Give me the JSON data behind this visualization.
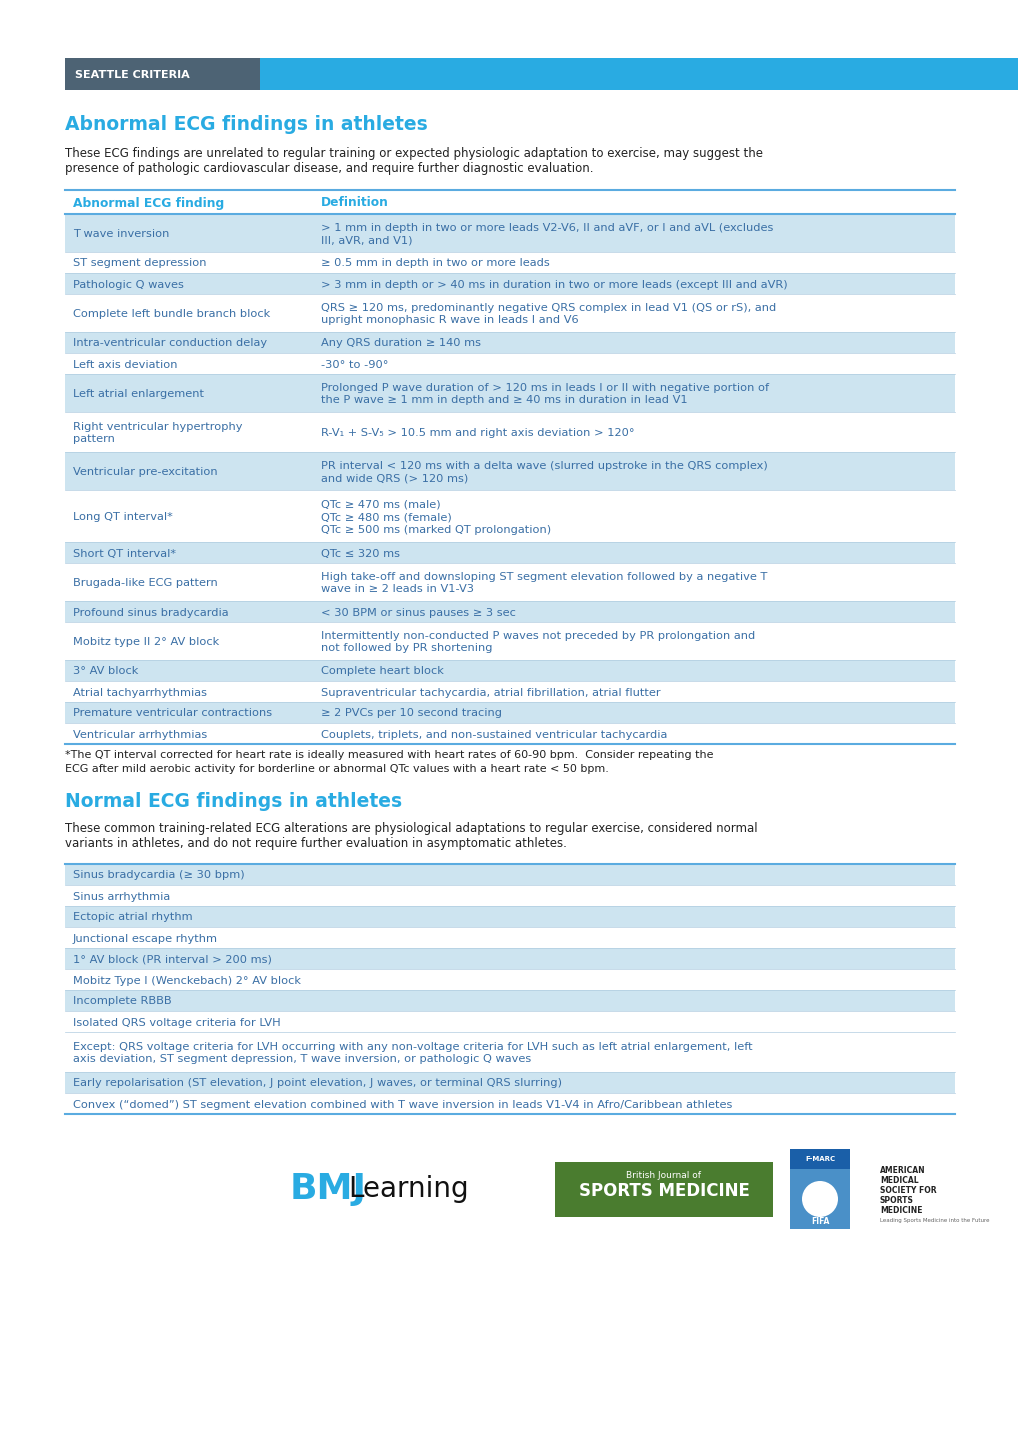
{
  "header_bg": "#4d6374",
  "header_light_bg": "#29abe2",
  "header_text": "SEATTLE CRITERIA",
  "title_abnormal": "Abnormal ECG findings in athletes",
  "title_normal": "Normal ECG findings in athletes",
  "title_color": "#29abe2",
  "body_bg": "#ffffff",
  "table_header_color": "#29abe2",
  "table_row_alt_color": "#cde4f0",
  "table_row_white": "#ffffff",
  "table_text_color": "#3a6fa5",
  "border_color": "#5aabe0",
  "abnormal_desc1": "These ECG findings are unrelated to regular training or expected physiologic adaptation to exercise, may suggest the",
  "abnormal_desc2": "presence of pathologic cardiovascular disease, and require further diagnostic evaluation.",
  "normal_desc1": "These common training-related ECG alterations are physiological adaptations to regular exercise, considered normal",
  "normal_desc2": "variants in athletes, and do not require further evaluation in asymptomatic athletes.",
  "footnote1": "*The QT interval corrected for heart rate is ideally measured with heart rates of 60-90 bpm.  Consider repeating the",
  "footnote2": "ECG after mild aerobic activity for borderline or abnormal QTc values with a heart rate < 50 bpm.",
  "col1_header": "Abnormal ECG finding",
  "col2_header": "Definition",
  "abnormal_rows": [
    {
      "c1": "T wave inversion",
      "c2": "> 1 mm in depth in two or more leads V2-V6, II and aVF, or I and aVL (excludes\nIII, aVR, and V1)",
      "shaded": true
    },
    {
      "c1": "ST segment depression",
      "c2": "≥ 0.5 mm in depth in two or more leads",
      "shaded": false
    },
    {
      "c1": "Pathologic Q waves",
      "c2": "> 3 mm in depth or > 40 ms in duration in two or more leads (except III and aVR)",
      "shaded": true
    },
    {
      "c1": "Complete left bundle branch block",
      "c2": "QRS ≥ 120 ms, predominantly negative QRS complex in lead V1 (QS or rS), and\nupright monophasic R wave in leads I and V6",
      "shaded": false
    },
    {
      "c1": "Intra-ventricular conduction delay",
      "c2": "Any QRS duration ≥ 140 ms",
      "shaded": true
    },
    {
      "c1": "Left axis deviation",
      "c2": "-30° to -90°",
      "shaded": false
    },
    {
      "c1": "Left atrial enlargement",
      "c2": "Prolonged P wave duration of > 120 ms in leads I or II with negative portion of\nthe P wave ≥ 1 mm in depth and ≥ 40 ms in duration in lead V1",
      "shaded": true
    },
    {
      "c1": "Right ventricular hypertrophy\npattern",
      "c2": "R-V₁ + S-V₅ > 10.5 mm and right axis deviation > 120°",
      "shaded": false
    },
    {
      "c1": "Ventricular pre-excitation",
      "c2": "PR interval < 120 ms with a delta wave (slurred upstroke in the QRS complex)\nand wide QRS (> 120 ms)",
      "shaded": true
    },
    {
      "c1": "Long QT interval*",
      "c2": "QTc ≥ 470 ms (male)\nQTc ≥ 480 ms (female)\nQTc ≥ 500 ms (marked QT prolongation)",
      "shaded": false
    },
    {
      "c1": "Short QT interval*",
      "c2": "QTc ≤ 320 ms",
      "shaded": true
    },
    {
      "c1": "Brugada-like ECG pattern",
      "c2": "High take-off and downsloping ST segment elevation followed by a negative T\nwave in ≥ 2 leads in V1-V3",
      "shaded": false
    },
    {
      "c1": "Profound sinus bradycardia",
      "c2": "< 30 BPM or sinus pauses ≥ 3 sec",
      "shaded": true
    },
    {
      "c1": "Mobitz type II 2° AV block",
      "c2": "Intermittently non-conducted P waves not preceded by PR prolongation and\nnot followed by PR shortening",
      "shaded": false
    },
    {
      "c1": "3° AV block",
      "c2": "Complete heart block",
      "shaded": true
    },
    {
      "c1": "Atrial tachyarrhythmias",
      "c2": "Supraventricular tachycardia, atrial fibrillation, atrial flutter",
      "shaded": false
    },
    {
      "c1": "Premature ventricular contractions",
      "c2": "≥ 2 PVCs per 10 second tracing",
      "shaded": true
    },
    {
      "c1": "Ventricular arrhythmias",
      "c2": "Couplets, triplets, and non-sustained ventricular tachycardia",
      "shaded": false
    }
  ],
  "normal_rows": [
    {
      "text": "Sinus bradycardia (≥ 30 bpm)",
      "shaded": true
    },
    {
      "text": "Sinus arrhythmia",
      "shaded": false
    },
    {
      "text": "Ectopic atrial rhythm",
      "shaded": true
    },
    {
      "text": "Junctional escape rhythm",
      "shaded": false
    },
    {
      "text": "1° AV block (PR interval > 200 ms)",
      "shaded": true
    },
    {
      "text": "Mobitz Type I (Wenckebach) 2° AV block",
      "shaded": false
    },
    {
      "text": "Incomplete RBBB",
      "shaded": true
    },
    {
      "text": "Isolated QRS voltage criteria for LVH",
      "shaded": false
    },
    {
      "text": "Except: QRS voltage criteria for LVH occurring with any non-voltage criteria for LVH such as left atrial enlargement, left\naxis deviation, ST segment depression, T wave inversion, or pathologic Q waves",
      "shaded": false
    },
    {
      "text": "Early repolarisation (ST elevation, J point elevation, J waves, or terminal QRS slurring)",
      "shaded": true
    },
    {
      "text": "Convex (“domed”) ST segment elevation combined with T wave inversion in leads V1-V4 in Afro/Caribbean athletes",
      "shaded": false
    }
  ],
  "bjsm_bg": "#4a7c2f",
  "bmj_blue": "#29abe2",
  "fifa_blue": "#1a5fa8",
  "fifa_light": "#4a90c8"
}
